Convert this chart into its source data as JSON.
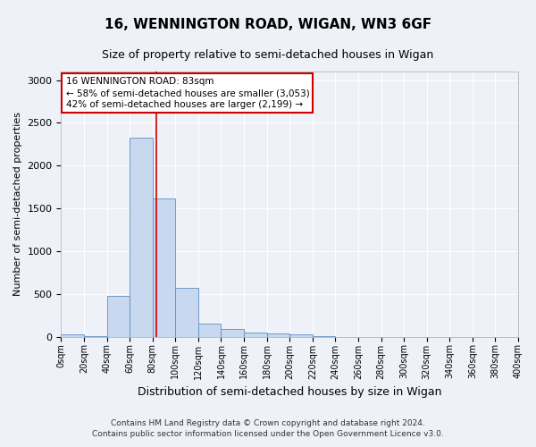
{
  "title1": "16, WENNINGTON ROAD, WIGAN, WN3 6GF",
  "title2": "Size of property relative to semi-detached houses in Wigan",
  "xlabel": "Distribution of semi-detached houses by size in Wigan",
  "ylabel": "Number of semi-detached properties",
  "bin_edges": [
    0,
    20,
    40,
    60,
    80,
    100,
    120,
    140,
    160,
    180,
    200,
    220,
    240,
    260,
    280,
    300,
    320,
    340,
    360,
    380,
    400
  ],
  "bar_heights": [
    30,
    2,
    475,
    2330,
    1620,
    575,
    155,
    90,
    50,
    35,
    28,
    5,
    0,
    0,
    0,
    0,
    0,
    0,
    0,
    0
  ],
  "bar_color": "#c8d8ee",
  "bar_edge_color": "#6090c0",
  "background_color": "#eef2f8",
  "grid_color": "#ffffff",
  "property_size": 83,
  "red_line_color": "#cc0000",
  "annotation_title": "16 WENNINGTON ROAD: 83sqm",
  "annotation_line1": "← 58% of semi-detached houses are smaller (3,053)",
  "annotation_line2": "42% of semi-detached houses are larger (2,199) →",
  "annotation_box_facecolor": "#ffffff",
  "annotation_border_color": "#cc0000",
  "ylim": [
    0,
    3100
  ],
  "ylim_top": 3100,
  "yticks": [
    0,
    500,
    1000,
    1500,
    2000,
    2500,
    3000
  ],
  "xlim": [
    0,
    400
  ],
  "xtick_positions": [
    0,
    20,
    40,
    60,
    80,
    100,
    120,
    140,
    160,
    180,
    200,
    220,
    240,
    260,
    280,
    300,
    320,
    340,
    360,
    380,
    400
  ],
  "xtick_labels": [
    "0sqm",
    "20sqm",
    "40sqm",
    "60sqm",
    "80sqm",
    "100sqm",
    "120sqm",
    "140sqm",
    "160sqm",
    "180sqm",
    "200sqm",
    "220sqm",
    "240sqm",
    "260sqm",
    "280sqm",
    "300sqm",
    "320sqm",
    "340sqm",
    "360sqm",
    "380sqm",
    "400sqm"
  ],
  "footer1": "Contains HM Land Registry data © Crown copyright and database right 2024.",
  "footer2": "Contains public sector information licensed under the Open Government Licence v3.0."
}
